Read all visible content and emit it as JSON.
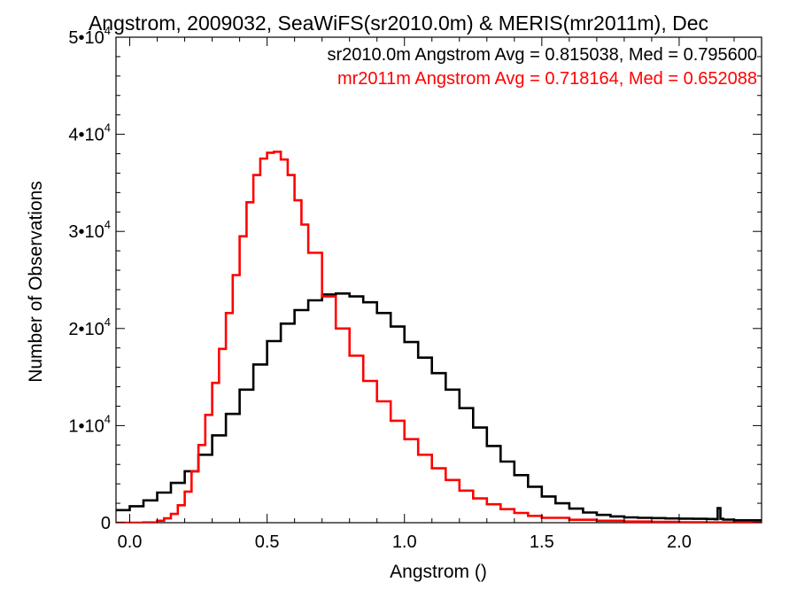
{
  "chart_data": {
    "type": "line",
    "title": "Angstrom, 2009032, SeaWiFS(sr2010.0m) & MERIS(mr2011m), Dec",
    "xlabel": "Angstrom ()",
    "ylabel": "Number of Observations",
    "xlim": [
      -0.05,
      2.3
    ],
    "ylim": [
      0,
      50000
    ],
    "x_ticks": [
      0.0,
      0.5,
      1.0,
      1.5,
      2.0
    ],
    "x_tick_labels": [
      "0.0",
      "0.5",
      "1.0",
      "1.5",
      "2.0"
    ],
    "y_ticks": [
      0,
      10000,
      20000,
      30000,
      40000,
      50000
    ],
    "y_tick_labels": [
      {
        "base": "0",
        "exp": ""
      },
      {
        "base": "1•10",
        "exp": "4"
      },
      {
        "base": "2•10",
        "exp": "4"
      },
      {
        "base": "3•10",
        "exp": "4"
      },
      {
        "base": "4•10",
        "exp": "4"
      },
      {
        "base": "5•10",
        "exp": "4"
      }
    ],
    "grid": false,
    "legend_placement": "top-right",
    "series": [
      {
        "name": "sr2010.0m",
        "label": "sr2010.0m Angstrom Avg = 0.815038, Med = 0.795600",
        "color": "#000000",
        "style": "step",
        "x": [
          -0.05,
          0.0,
          0.05,
          0.1,
          0.15,
          0.2,
          0.25,
          0.3,
          0.35,
          0.4,
          0.45,
          0.5,
          0.55,
          0.6,
          0.65,
          0.7,
          0.75,
          0.8,
          0.85,
          0.9,
          0.95,
          1.0,
          1.05,
          1.1,
          1.15,
          1.2,
          1.25,
          1.3,
          1.35,
          1.4,
          1.45,
          1.5,
          1.55,
          1.6,
          1.65,
          1.7,
          1.75,
          1.8,
          1.85,
          1.9,
          1.95,
          2.0,
          2.05,
          2.1,
          2.13,
          2.14,
          2.15,
          2.16,
          2.2,
          2.3
        ],
        "y": [
          1300,
          1700,
          2300,
          3100,
          4100,
          5300,
          7000,
          9000,
          11200,
          13700,
          16300,
          18700,
          20500,
          21900,
          22900,
          23500,
          23600,
          23300,
          22700,
          21600,
          20200,
          18600,
          17000,
          15400,
          13700,
          11800,
          9800,
          7900,
          6300,
          4900,
          3700,
          2700,
          2000,
          1450,
          1050,
          800,
          650,
          550,
          500,
          470,
          440,
          420,
          400,
          380,
          360,
          1500,
          400,
          320,
          250,
          150
        ]
      },
      {
        "name": "mr2011m",
        "label": "mr2011m Angstrom Avg = 0.718164, Med = 0.652088",
        "color": "#ff0000",
        "style": "step",
        "x": [
          -0.05,
          0.0,
          0.05,
          0.1,
          0.125,
          0.15,
          0.175,
          0.2,
          0.225,
          0.25,
          0.275,
          0.3,
          0.325,
          0.35,
          0.375,
          0.4,
          0.425,
          0.45,
          0.475,
          0.5,
          0.525,
          0.55,
          0.575,
          0.6,
          0.625,
          0.65,
          0.7,
          0.75,
          0.8,
          0.85,
          0.9,
          0.95,
          1.0,
          1.05,
          1.1,
          1.15,
          1.2,
          1.25,
          1.3,
          1.35,
          1.4,
          1.45,
          1.5,
          1.6,
          1.7,
          1.8,
          1.9,
          2.0,
          2.1,
          2.2,
          2.3
        ],
        "y": [
          0,
          0,
          30,
          200,
          450,
          900,
          1800,
          3200,
          5300,
          8000,
          11100,
          14400,
          17900,
          21600,
          25500,
          29500,
          33000,
          35800,
          37500,
          38100,
          38200,
          37400,
          35800,
          33200,
          30700,
          27800,
          23300,
          20000,
          17200,
          14600,
          12500,
          10500,
          8600,
          7000,
          5600,
          4400,
          3300,
          2500,
          1900,
          1400,
          1000,
          700,
          500,
          300,
          200,
          120,
          80,
          50,
          30,
          20,
          10
        ]
      }
    ]
  }
}
